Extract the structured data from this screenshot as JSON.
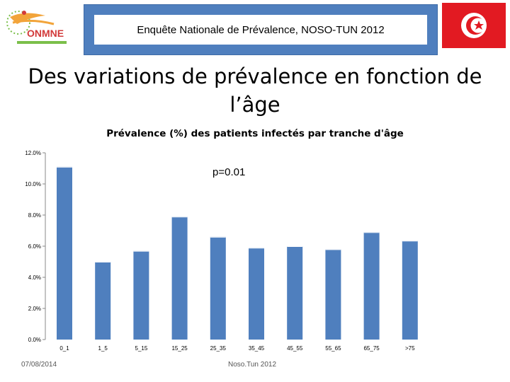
{
  "header": {
    "logo_text": "ONMNE",
    "banner_title": "Enquête Nationale de Prévalence, NOSO-TUN 2012"
  },
  "slide_title": "Des variations de prévalence en fonction de l’âge",
  "annotation": "p=0.01",
  "footer": {
    "date": "07/08/2014",
    "source": "Noso.Tun 2012"
  },
  "colors": {
    "bar": "#4f7fbe",
    "banner": "#4f7fbe",
    "flag_red": "#e21a22"
  },
  "chart_data": {
    "type": "bar",
    "title": "Prévalence (%) des patients infectés par tranche d'âge",
    "xlabel": "",
    "ylabel": "",
    "categories": [
      "0_1",
      "1_5",
      "5_15",
      "15_25",
      "25_35",
      "35_45",
      "45_55",
      "55_65",
      "65_75",
      ">75"
    ],
    "values": [
      11.1,
      5.0,
      5.7,
      7.9,
      6.6,
      5.9,
      6.0,
      5.8,
      6.9,
      6.35
    ],
    "ylim": [
      0,
      12
    ],
    "yticks": [
      "0.0%",
      "2.0%",
      "4.0%",
      "6.0%",
      "8.0%",
      "10.0%",
      "12.0%"
    ],
    "grid": false
  }
}
